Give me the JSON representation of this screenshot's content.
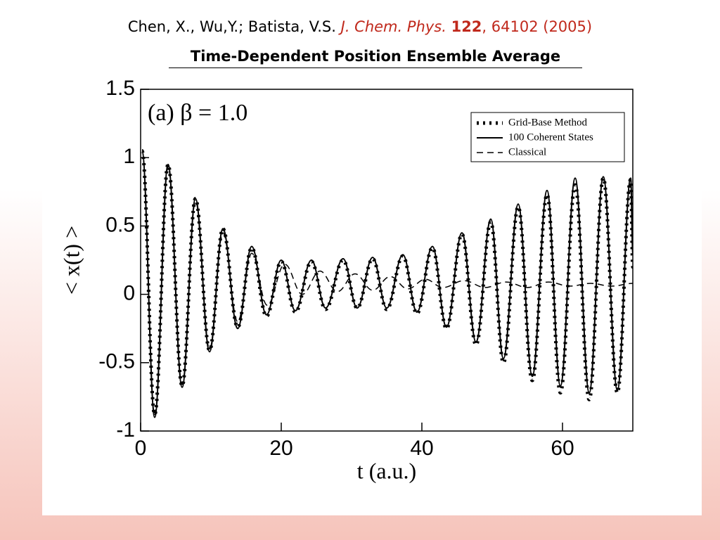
{
  "header": {
    "authors": "Chen, X., Wu,Y.; Batista, V.S.",
    "journal": "J. Chem. Phys.",
    "volume": "122",
    "rest": ", 64102 (2005)"
  },
  "chart_data": {
    "type": "line",
    "title": "Time-Dependent Position Ensemble Average",
    "annotation": "(a) β = 1.0",
    "xlabel": "t (a.u.)",
    "ylabel": "< x(t) >",
    "xlim": [
      0,
      70
    ],
    "ylim": [
      -1,
      1.5
    ],
    "xticks": [
      0,
      20,
      40,
      60
    ],
    "yticks": [
      -1,
      -0.5,
      0,
      0.5,
      1,
      1.5
    ],
    "legend": "top-right",
    "series": [
      {
        "name": "Grid-Base Method",
        "color": "#000000",
        "style": "dotted",
        "x": [
          0.2,
          2,
          3.9,
          5.9,
          7.8,
          9.8,
          11.7,
          13.8,
          15.8,
          17.9,
          20,
          22,
          24.3,
          26.3,
          28.8,
          30.8,
          33,
          35,
          37.3,
          39.3,
          41.5,
          43.5,
          45.7,
          47.7,
          49.8,
          51.6,
          53.7,
          55.7,
          57.8,
          59.7,
          61.8,
          63.8,
          65.8,
          67.8,
          69.7,
          70
        ],
        "values": [
          1.05,
          -0.88,
          0.95,
          -0.67,
          0.7,
          -0.41,
          0.48,
          -0.24,
          0.34,
          -0.16,
          0.24,
          -0.13,
          0.24,
          -0.11,
          0.25,
          -0.1,
          0.26,
          -0.11,
          0.28,
          -0.14,
          0.34,
          -0.25,
          0.44,
          -0.37,
          0.53,
          -0.5,
          0.64,
          -0.63,
          0.73,
          -0.72,
          0.8,
          -0.77,
          0.85,
          -0.72,
          0.84,
          0.2
        ]
      },
      {
        "name": "100 Coherent States",
        "color": "#000000",
        "style": "solid",
        "x": [
          0.2,
          2,
          3.9,
          5.9,
          7.8,
          9.8,
          11.7,
          13.8,
          15.8,
          17.9,
          20,
          22,
          24.3,
          26.3,
          28.8,
          30.8,
          33,
          35,
          37.3,
          39.3,
          41.5,
          43.5,
          45.7,
          47.7,
          49.8,
          51.6,
          53.7,
          55.7,
          57.8,
          59.7,
          61.8,
          63.8,
          65.8,
          67.8,
          69.7,
          70
        ],
        "values": [
          1.05,
          -0.9,
          0.95,
          -0.68,
          0.7,
          -0.42,
          0.48,
          -0.25,
          0.35,
          -0.15,
          0.25,
          -0.12,
          0.25,
          -0.1,
          0.26,
          -0.1,
          0.27,
          -0.1,
          0.29,
          -0.13,
          0.35,
          -0.24,
          0.45,
          -0.35,
          0.55,
          -0.47,
          0.66,
          -0.6,
          0.76,
          -0.67,
          0.85,
          -0.72,
          0.86,
          -0.7,
          0.85,
          0.3
        ]
      },
      {
        "name": "Classical",
        "color": "#000000",
        "style": "dashed",
        "x": [
          0.2,
          2,
          3.9,
          5.9,
          7.8,
          9.8,
          11.7,
          13.8,
          15.8,
          18,
          20.5,
          23,
          25.5,
          28,
          30.5,
          33,
          35.5,
          38,
          40.5,
          43,
          46,
          49,
          52,
          55,
          58,
          61,
          64,
          67,
          70
        ],
        "values": [
          1.05,
          -0.88,
          0.93,
          -0.66,
          0.68,
          -0.4,
          0.45,
          -0.2,
          0.3,
          -0.08,
          0.22,
          0,
          0.17,
          0.02,
          0.15,
          0.03,
          0.13,
          0.04,
          0.11,
          0.05,
          0.1,
          0.05,
          0.09,
          0.05,
          0.09,
          0.06,
          0.08,
          0.06,
          0.08
        ]
      }
    ]
  }
}
